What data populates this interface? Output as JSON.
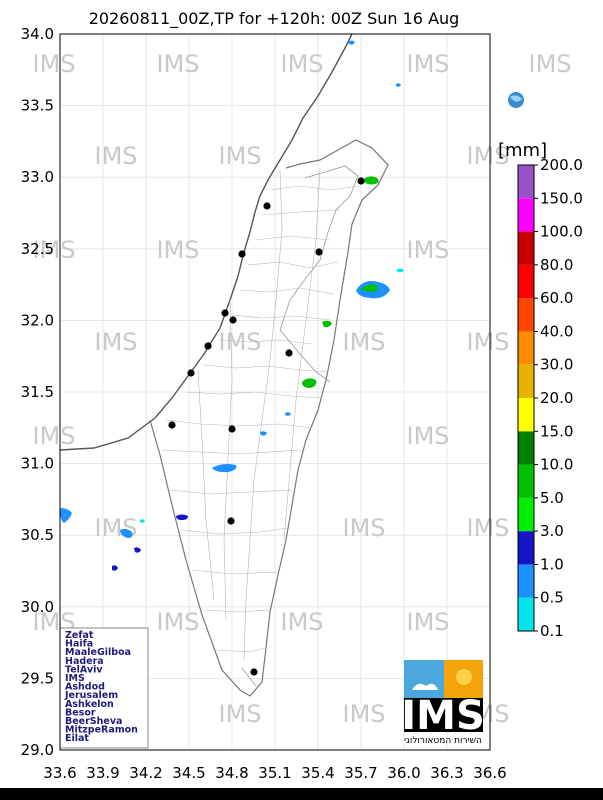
{
  "title": "20260811_00Z,TP for +120h: 00Z Sun 16 Aug",
  "map": {
    "x_ticks": [
      "33.6",
      "33.9",
      "34.2",
      "34.5",
      "34.8",
      "35.1",
      "35.4",
      "35.7",
      "36.0",
      "36.3",
      "36.6"
    ],
    "y_ticks": [
      "34.0",
      "33.5",
      "33.0",
      "32.5",
      "32.0",
      "31.5",
      "31.0",
      "30.5",
      "30.0",
      "29.5",
      "29.0"
    ],
    "watermark": "IMS",
    "cities": [
      "Zefat",
      "Haifa",
      "MaaleGilboa",
      "Hadera",
      "TelAviv",
      "IMS",
      "Ashdod",
      "Jerusalem",
      "Ashkelon",
      "Besor",
      "BeerSheva",
      "MitzpeRamon",
      "Eilat"
    ],
    "city_marker_color": "#000000",
    "coast_color": "#555555",
    "border_color": "#9a9a9a"
  },
  "colorbar": {
    "unit": "[mm]",
    "levels": [
      "0.1",
      "0.5",
      "1.0",
      "3.0",
      "5.0",
      "10.0",
      "15.0",
      "20.0",
      "30.0",
      "40.0",
      "60.0",
      "80.0",
      "100.0",
      "150.0",
      "200.0"
    ],
    "colors": [
      "#00e5ee",
      "#1e90ff",
      "#1414c8",
      "#00ee00",
      "#00c000",
      "#008000",
      "#ffff00",
      "#e6b400",
      "#ff8c00",
      "#ff4500",
      "#ff0000",
      "#c80000",
      "#ff00ff",
      "#9a50c8"
    ]
  },
  "logo": {
    "text": "IMS",
    "subtitle": "השירות המטאורולוגי",
    "sky_color": "#4aa8dc",
    "sun_color": "#f5a30a"
  }
}
